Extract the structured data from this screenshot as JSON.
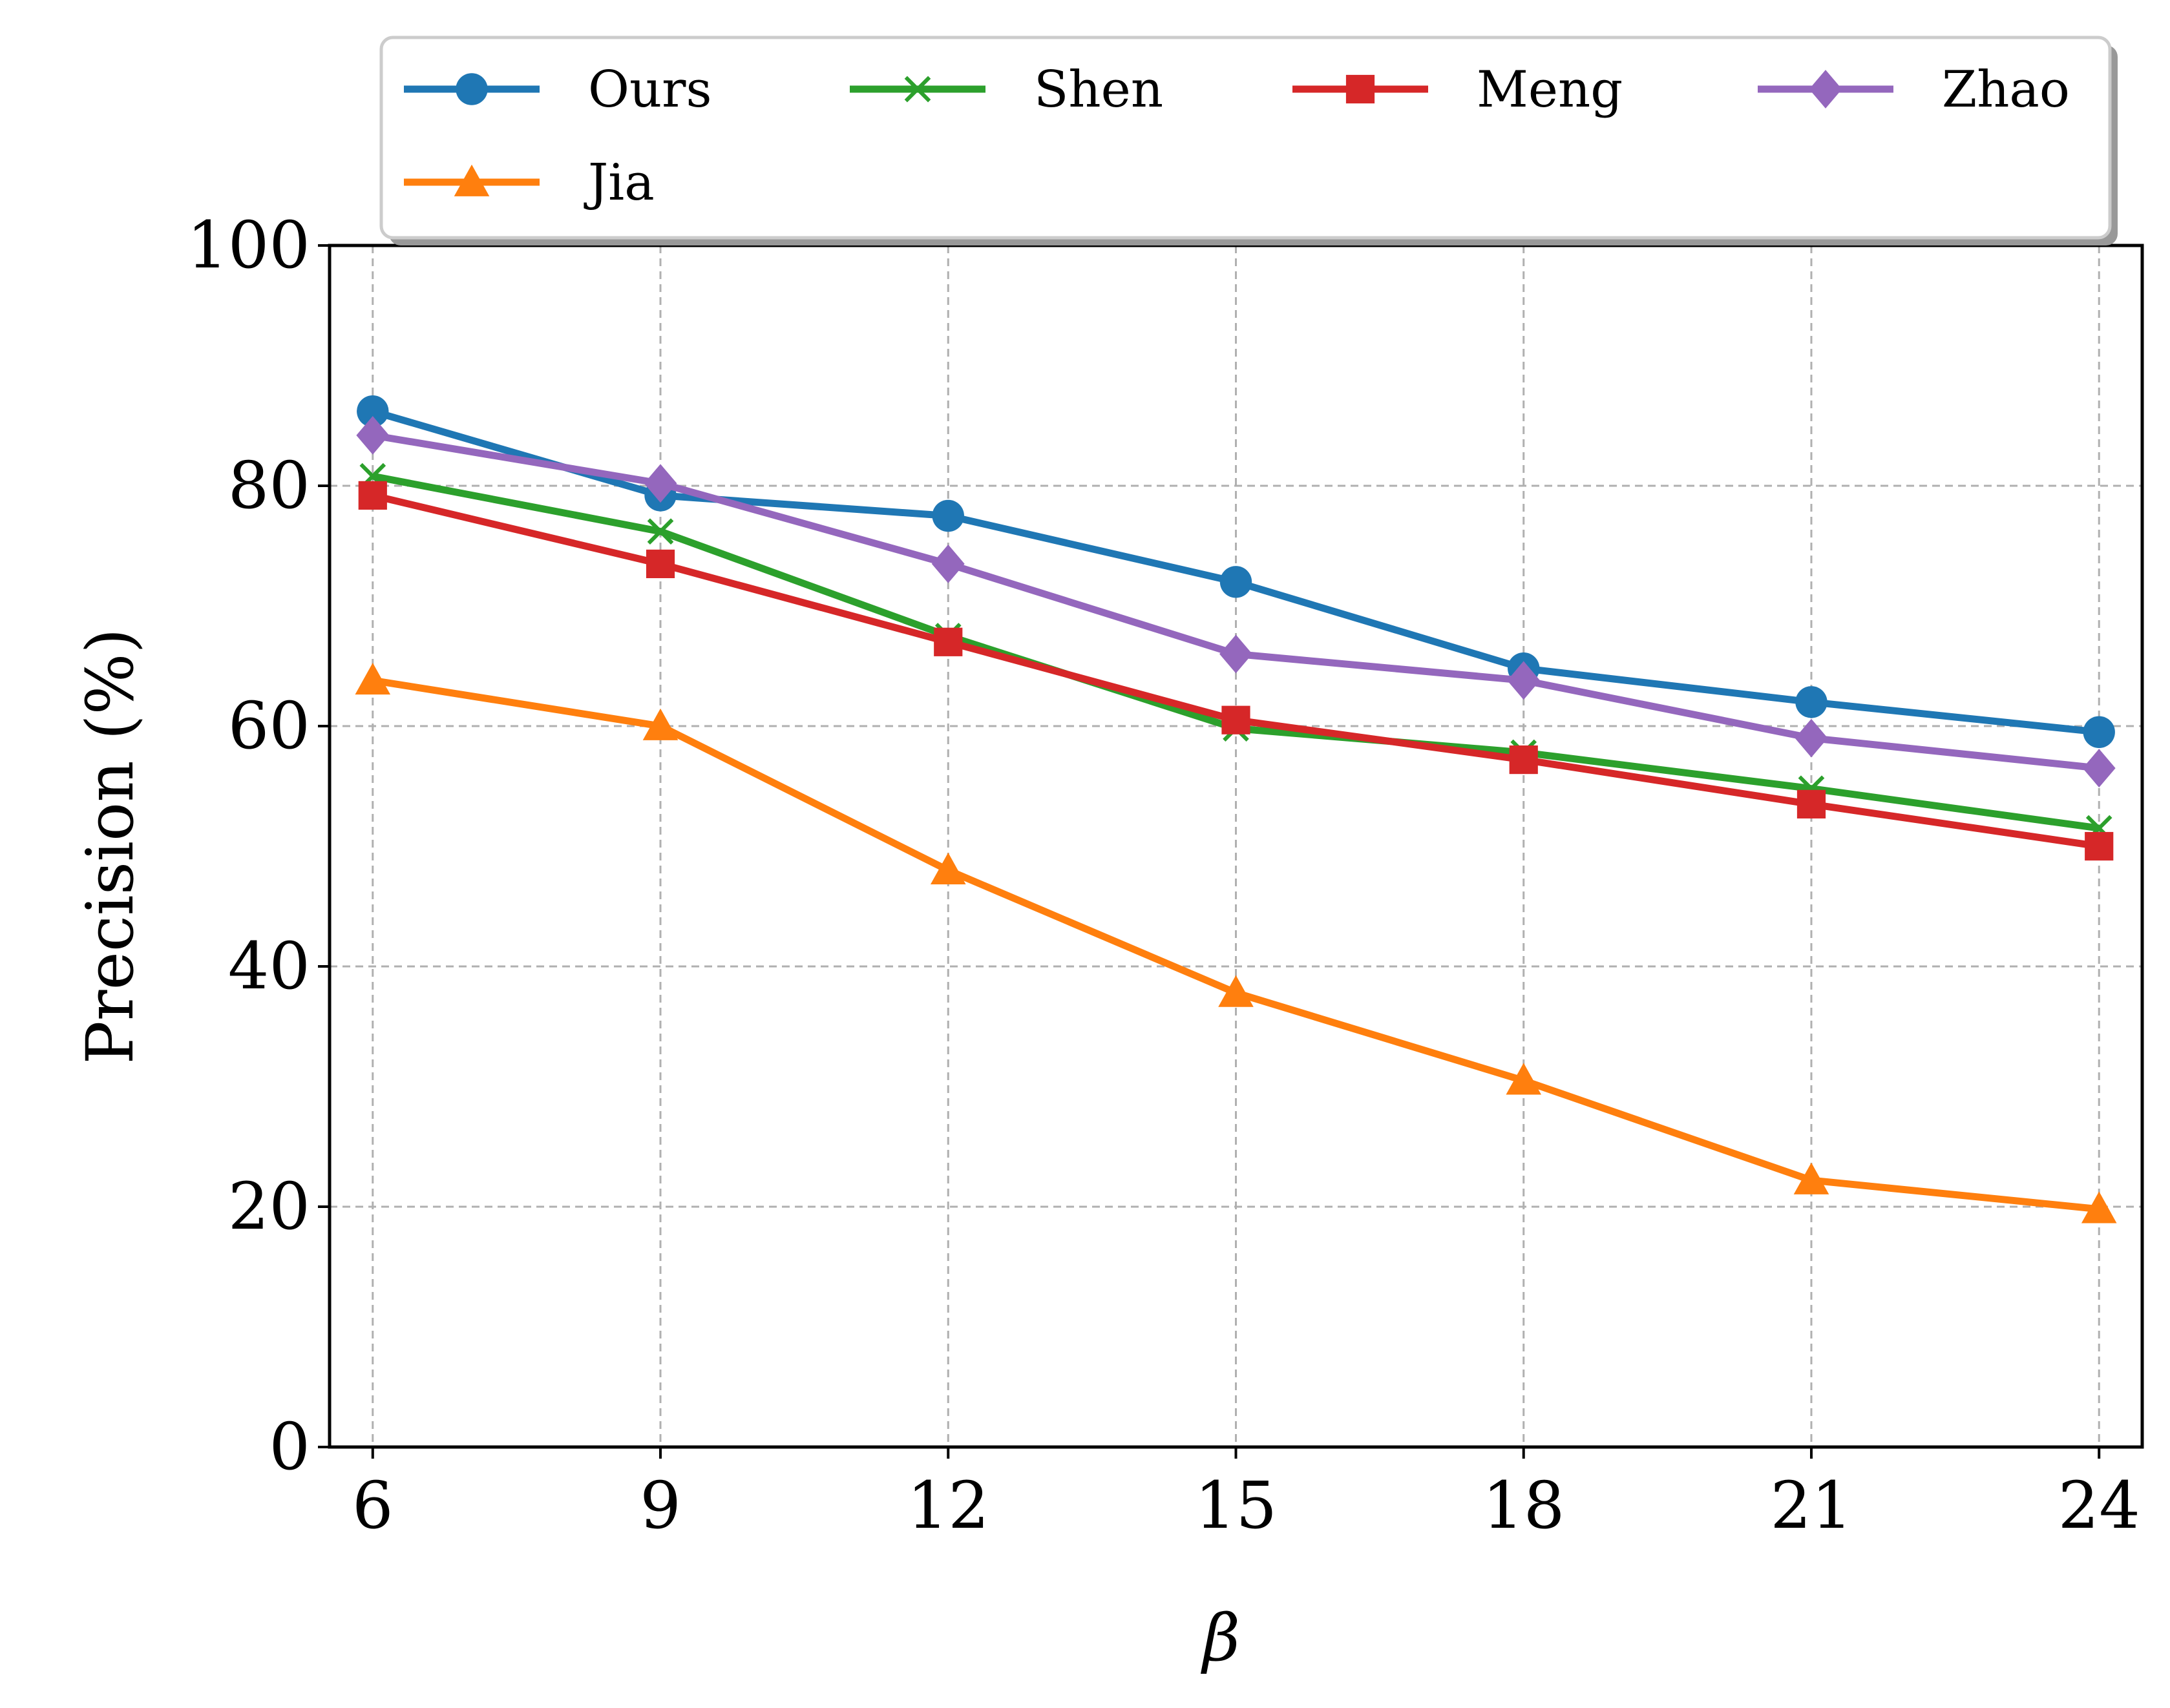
{
  "chart_data": {
    "type": "line",
    "xlabel": "β",
    "ylabel": "Precision (%)",
    "x": [
      6,
      9,
      12,
      15,
      18,
      21,
      24
    ],
    "xlim": [
      5.55,
      24.45
    ],
    "ylim": [
      0,
      100
    ],
    "yticks": [
      0,
      20,
      40,
      60,
      80,
      100
    ],
    "xticks": [
      6,
      9,
      12,
      15,
      18,
      21,
      24
    ],
    "grid": true,
    "legend_placement": "top, above plot",
    "series": [
      {
        "name": "Ours",
        "color": "#1f77b4",
        "marker": "circle",
        "values": [
          86.2,
          79.2,
          77.5,
          72.0,
          64.8,
          62.0,
          59.5
        ]
      },
      {
        "name": "Shen",
        "color": "#2ca02c",
        "marker": "x",
        "values": [
          80.8,
          76.2,
          67.5,
          59.8,
          57.8,
          54.8,
          51.5
        ]
      },
      {
        "name": "Meng",
        "color": "#d62728",
        "marker": "square",
        "values": [
          79.2,
          73.5,
          67.0,
          60.5,
          57.2,
          53.5,
          50.0
        ]
      },
      {
        "name": "Zhao",
        "color": "#9467bd",
        "marker": "diamond",
        "values": [
          84.2,
          80.2,
          73.5,
          66.0,
          63.8,
          59.0,
          56.5
        ]
      },
      {
        "name": "Jia",
        "color": "#ff7f0e",
        "marker": "triangle",
        "values": [
          63.8,
          60.0,
          48.0,
          37.8,
          30.5,
          22.2,
          19.8
        ]
      }
    ]
  }
}
